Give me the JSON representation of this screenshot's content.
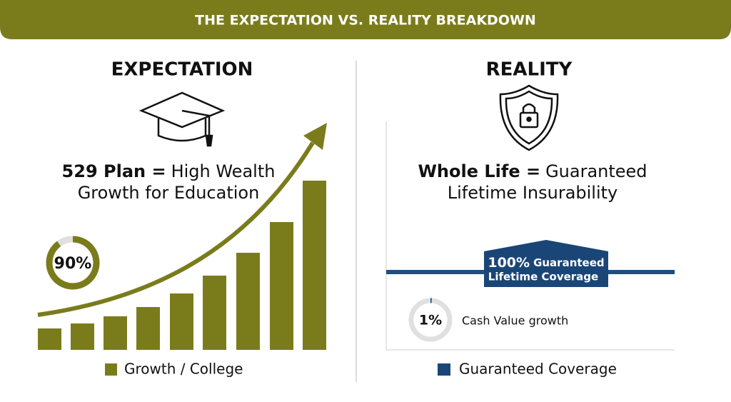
{
  "header": {
    "title": "THE EXPECTATION VS. REALITY BREAKDOWN"
  },
  "expectation": {
    "heading": "EXPECTATION",
    "statement": {
      "bold": "529 Plan =",
      "rest": "High Wealth",
      "line2": "Growth for Education"
    },
    "gauge": {
      "value": 90,
      "label": "90%"
    },
    "legend": "Growth / College"
  },
  "reality": {
    "heading": "REALITY",
    "statement": {
      "bold": "Whole Life =",
      "rest": "Guaranteed",
      "line2": "Lifetime Insurability"
    },
    "banner": {
      "big": "100%",
      "small": "Guaranteed",
      "line2": "Lifetime Coverage"
    },
    "gauge": {
      "value": 1,
      "label": "1%"
    },
    "gauge_caption": "Cash Value growth",
    "legend": "Guaranteed Coverage"
  }
}
